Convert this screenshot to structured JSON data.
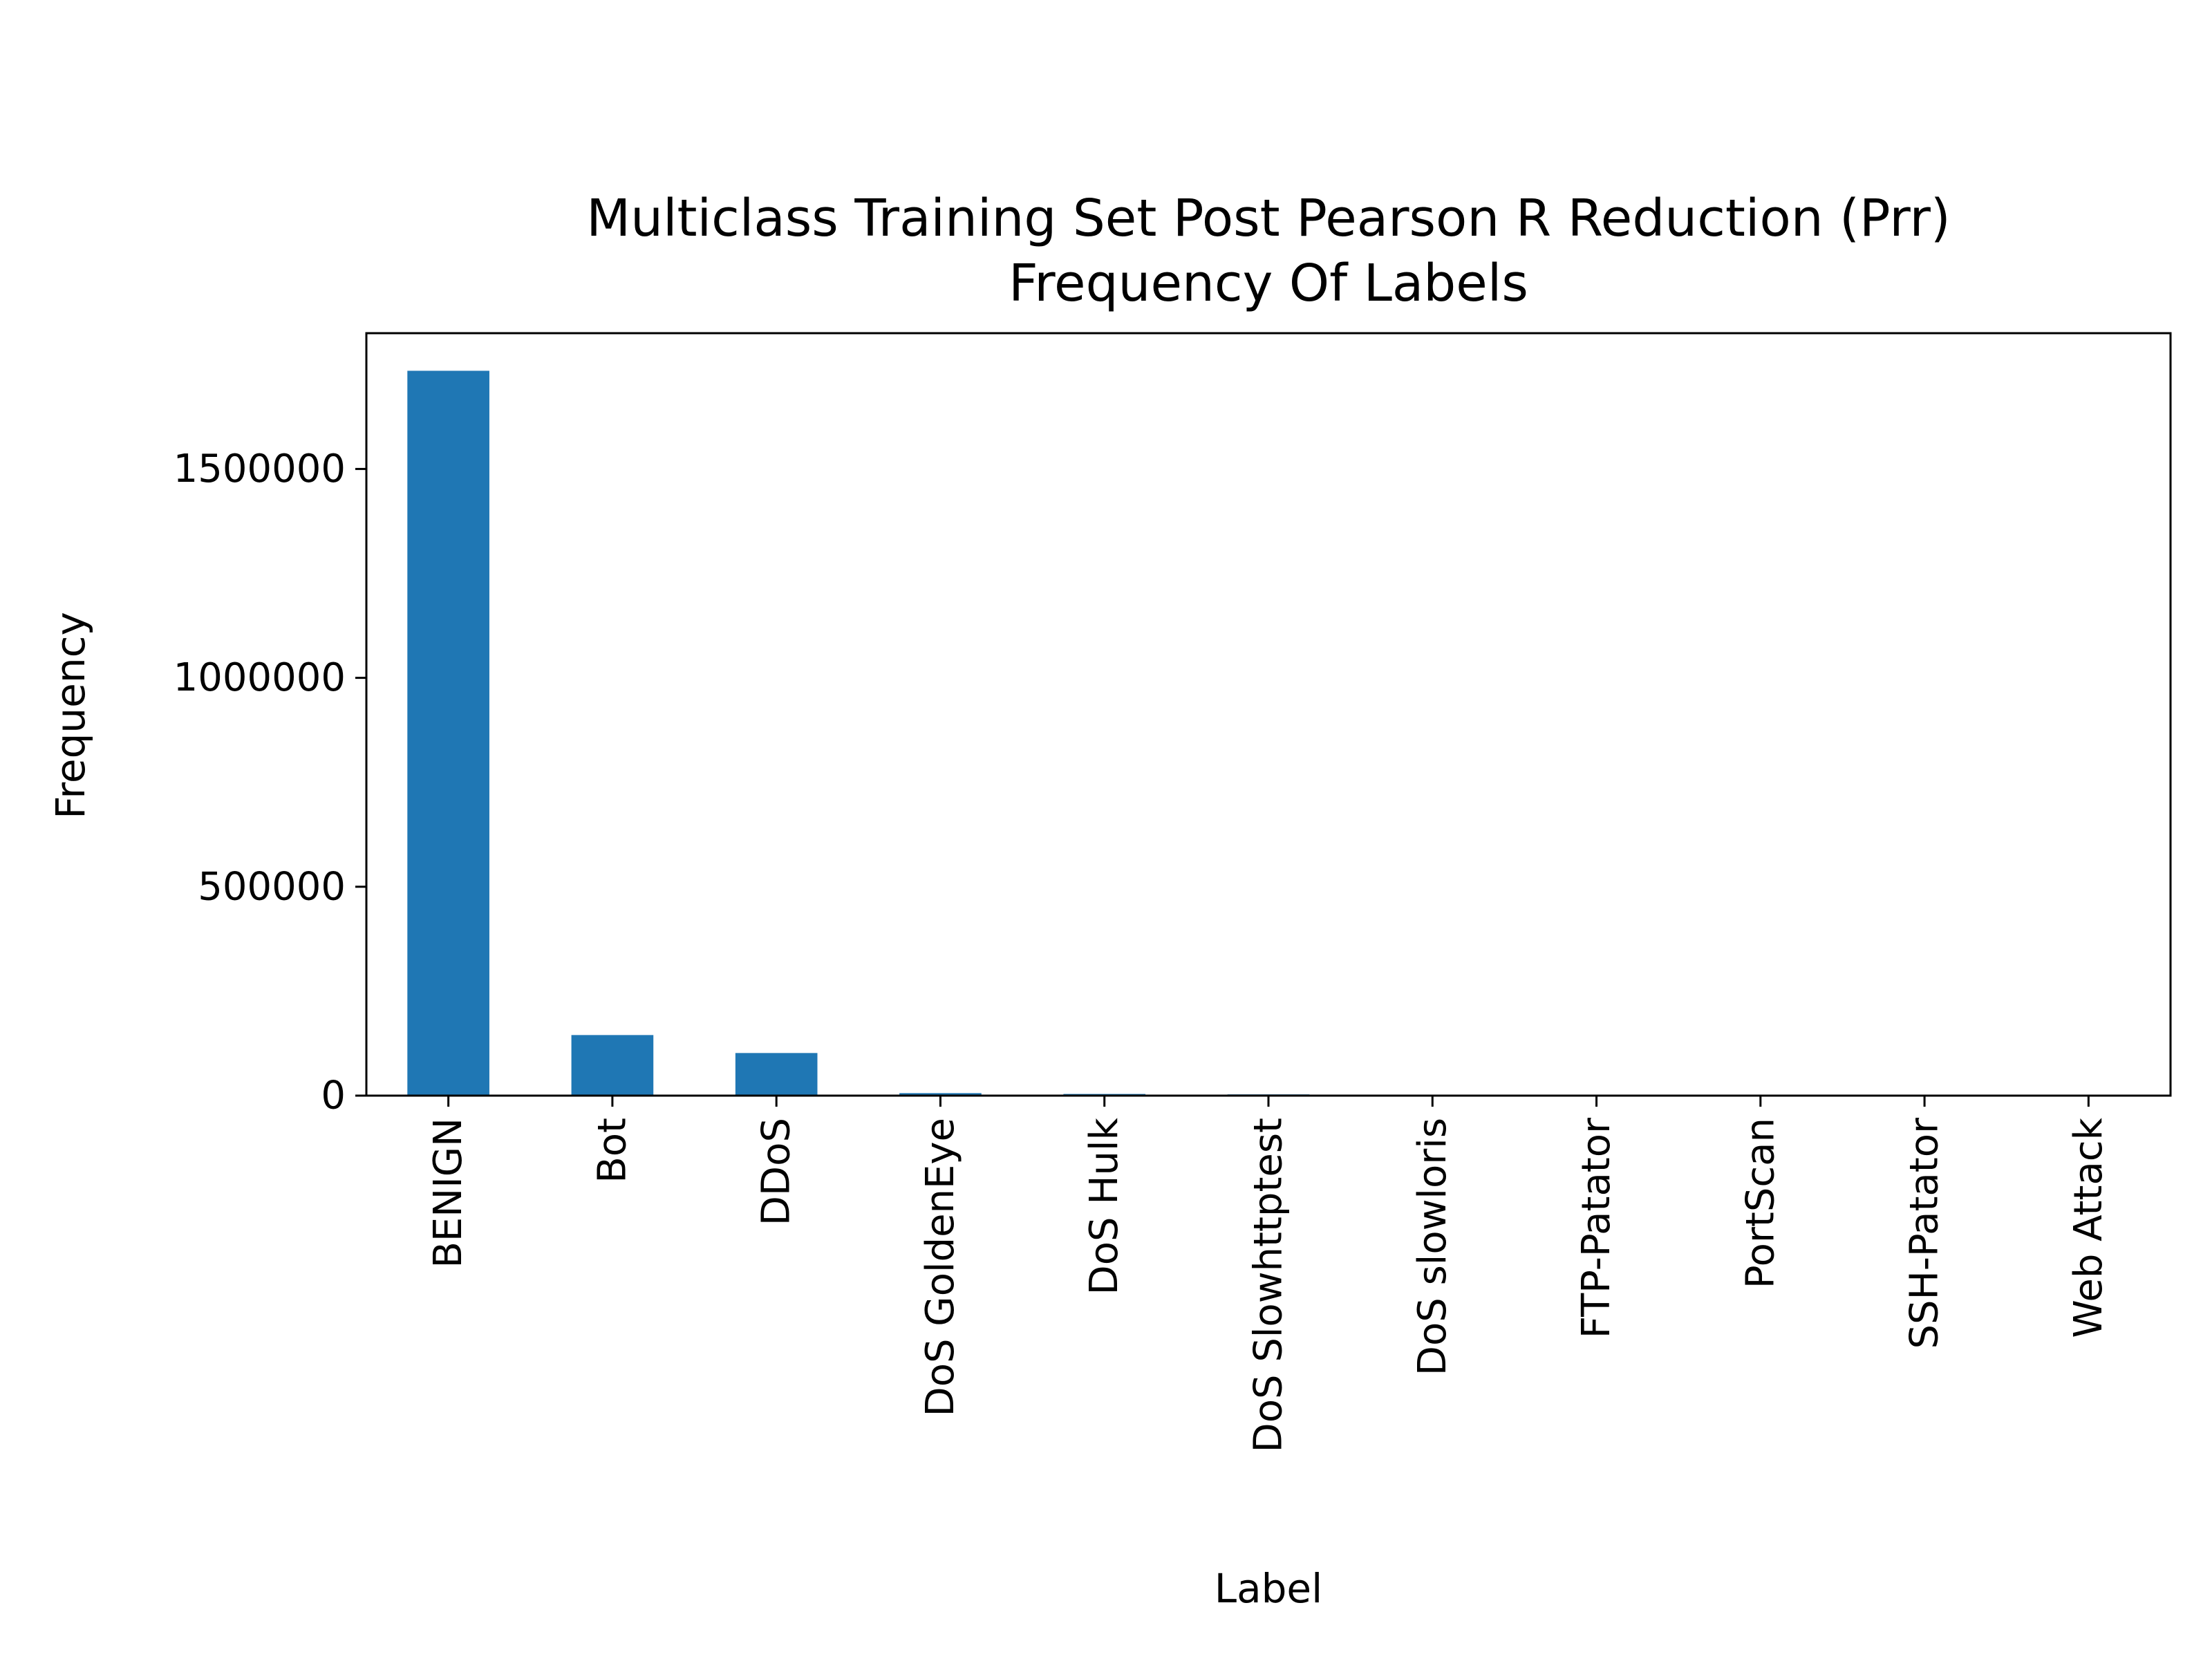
{
  "chart_data": {
    "type": "bar",
    "title_lines": [
      "Multiclass Training Set Post Pearson R Reduction (Prr)",
      "Frequency Of  Labels"
    ],
    "xlabel": "Label",
    "ylabel": "Frequency",
    "categories": [
      "BENIGN",
      "Bot",
      "DDoS",
      "DoS GoldenEye",
      "DoS Hulk",
      "DoS Slowhttptest",
      "DoS slowloris",
      "FTP-Patator",
      "PortScan",
      "SSH-Patator",
      "Web Attack"
    ],
    "values": [
      1735000,
      145000,
      102000,
      6000,
      4000,
      3000,
      2000,
      1000,
      800,
      600,
      400
    ],
    "yticks": [
      0,
      500000,
      1000000,
      1500000
    ],
    "ytick_labels": [
      "0",
      "500000",
      "1000000",
      "1500000"
    ],
    "ylim": [
      0,
      1825000
    ],
    "bar_color": "#1f77b4",
    "grid": false,
    "legend": "none"
  }
}
